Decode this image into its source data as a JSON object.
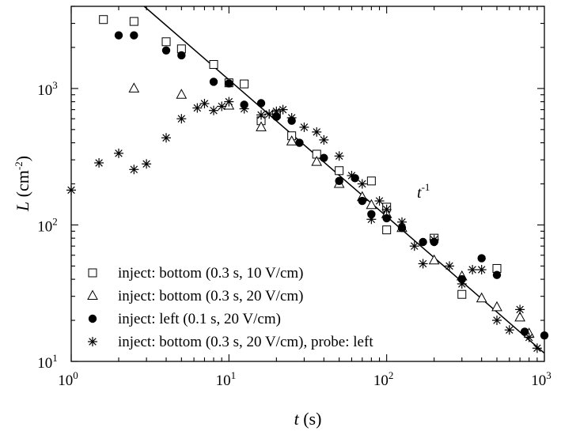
{
  "chart_data": {
    "type": "scatter",
    "xscale": "log",
    "yscale": "log",
    "xlim": [
      1,
      1000
    ],
    "ylim": [
      10,
      4000
    ],
    "x_major_ticks": [
      1,
      10,
      100,
      1000
    ],
    "y_major_ticks": [
      10,
      100,
      1000
    ],
    "xlabel": {
      "var": "t",
      "rest": " (s)"
    },
    "ylabel": {
      "var": "L",
      "rest": " (cm",
      "exp": "-2",
      "close": ")"
    },
    "annotation": {
      "base": "t",
      "exp": "-1"
    },
    "fit_line": {
      "name": "t^-1 fit",
      "points": [
        [
          2.9,
          4000
        ],
        [
          1000,
          11.5
        ]
      ]
    },
    "series": [
      {
        "name": "inject: bottom (0.3 s, 10 V/cm)",
        "marker": "square-open",
        "points": [
          [
            1.6,
            3200
          ],
          [
            2.5,
            3100
          ],
          [
            4,
            2200
          ],
          [
            5,
            1950
          ],
          [
            8,
            1500
          ],
          [
            10,
            1100
          ],
          [
            12.5,
            1080
          ],
          [
            16,
            580
          ],
          [
            20,
            650
          ],
          [
            25,
            450
          ],
          [
            36,
            330
          ],
          [
            50,
            250
          ],
          [
            80,
            210
          ],
          [
            100,
            92
          ],
          [
            100,
            135
          ],
          [
            200,
            80
          ],
          [
            300,
            31
          ],
          [
            500,
            48
          ]
        ]
      },
      {
        "name": "inject: bottom (0.3 s, 20 V/cm)",
        "marker": "triangle-open",
        "points": [
          [
            2.5,
            1000
          ],
          [
            5,
            900
          ],
          [
            10,
            750
          ],
          [
            16,
            520
          ],
          [
            25,
            410
          ],
          [
            36,
            290
          ],
          [
            50,
            200
          ],
          [
            70,
            160
          ],
          [
            80,
            140
          ],
          [
            100,
            120
          ],
          [
            125,
            95
          ],
          [
            200,
            55
          ],
          [
            300,
            42
          ],
          [
            400,
            29
          ],
          [
            500,
            25
          ],
          [
            700,
            21
          ],
          [
            800,
            16
          ]
        ]
      },
      {
        "name": "inject: left (0.1 s, 20 V/cm)",
        "marker": "circle-filled",
        "points": [
          [
            2,
            2450
          ],
          [
            2.5,
            2450
          ],
          [
            4,
            1900
          ],
          [
            5,
            1750
          ],
          [
            8,
            1120
          ],
          [
            10,
            1090
          ],
          [
            12.5,
            760
          ],
          [
            16,
            780
          ],
          [
            20,
            620
          ],
          [
            25,
            580
          ],
          [
            28,
            400
          ],
          [
            40,
            310
          ],
          [
            50,
            210
          ],
          [
            63,
            220
          ],
          [
            70,
            150
          ],
          [
            80,
            120
          ],
          [
            100,
            112
          ],
          [
            125,
            95
          ],
          [
            170,
            75
          ],
          [
            200,
            75
          ],
          [
            300,
            40
          ],
          [
            400,
            57
          ],
          [
            500,
            43
          ],
          [
            750,
            16.5
          ],
          [
            1000,
            15.5
          ]
        ]
      },
      {
        "name": "inject: bottom (0.3 s, 20 V/cm), probe: left",
        "marker": "asterisk",
        "points": [
          [
            1,
            180
          ],
          [
            1.5,
            285
          ],
          [
            2,
            335
          ],
          [
            2.5,
            255
          ],
          [
            3,
            280
          ],
          [
            4,
            435
          ],
          [
            5,
            600
          ],
          [
            6.3,
            720
          ],
          [
            7,
            775
          ],
          [
            8,
            690
          ],
          [
            9,
            740
          ],
          [
            10,
            800
          ],
          [
            12.5,
            710
          ],
          [
            16,
            640
          ],
          [
            18,
            650
          ],
          [
            20,
            680
          ],
          [
            22,
            700
          ],
          [
            25,
            610
          ],
          [
            30,
            520
          ],
          [
            36,
            480
          ],
          [
            40,
            420
          ],
          [
            50,
            320
          ],
          [
            60,
            230
          ],
          [
            70,
            200
          ],
          [
            80,
            110
          ],
          [
            90,
            150
          ],
          [
            100,
            130
          ],
          [
            125,
            105
          ],
          [
            150,
            70
          ],
          [
            170,
            52
          ],
          [
            200,
            78
          ],
          [
            250,
            50
          ],
          [
            300,
            37
          ],
          [
            350,
            47
          ],
          [
            400,
            47
          ],
          [
            500,
            20
          ],
          [
            600,
            17
          ],
          [
            700,
            24
          ],
          [
            800,
            15
          ],
          [
            900,
            12.5
          ]
        ]
      }
    ]
  }
}
